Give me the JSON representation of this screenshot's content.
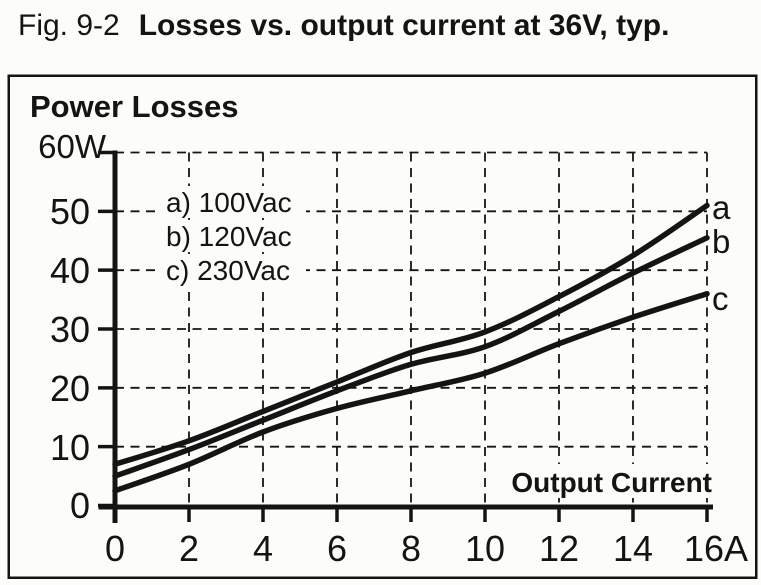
{
  "title": {
    "fig_label": "Fig. 9-2",
    "text": "Losses vs. output current at 36V, typ."
  },
  "chart": {
    "heading": "Power Losses",
    "y_top_label": "60W",
    "x_axis_label": "Output Current",
    "y_ticks": [
      "50",
      "40",
      "30",
      "20",
      "10",
      "0"
    ],
    "x_ticks": [
      "0",
      "2",
      "4",
      "6",
      "8",
      "10",
      "12",
      "14",
      "16A"
    ],
    "legend": [
      "a) 100Vac",
      "b) 120Vac",
      "c) 230Vac"
    ],
    "curve_labels": [
      "a",
      "b",
      "c"
    ]
  },
  "chart_data": {
    "type": "line",
    "title": "Power Losses",
    "xlabel": "Output Current",
    "ylabel": "Power Losses",
    "x_unit": "A",
    "y_unit": "W",
    "xlim": [
      0,
      16
    ],
    "ylim": [
      0,
      60
    ],
    "x_tick_step": 2,
    "y_tick_step": 10,
    "grid": "dashed",
    "legend_position": "upper-left-inside",
    "x": [
      0,
      2,
      4,
      6,
      8,
      10,
      12,
      14,
      16
    ],
    "series": [
      {
        "name": "a) 100Vac",
        "label": "a",
        "values": [
          7,
          11,
          16,
          21,
          26,
          29.5,
          35.5,
          42.5,
          51
        ]
      },
      {
        "name": "b) 120Vac",
        "label": "b",
        "values": [
          5,
          9.5,
          14.5,
          19.5,
          24,
          27,
          33,
          39.5,
          45.5
        ]
      },
      {
        "name": "c) 230Vac",
        "label": "c",
        "values": [
          2.5,
          7,
          12.5,
          16.5,
          19.5,
          22.5,
          27.5,
          32,
          36
        ]
      }
    ],
    "colors": {
      "ink": "#141414",
      "background": "#fcfcf9"
    }
  }
}
